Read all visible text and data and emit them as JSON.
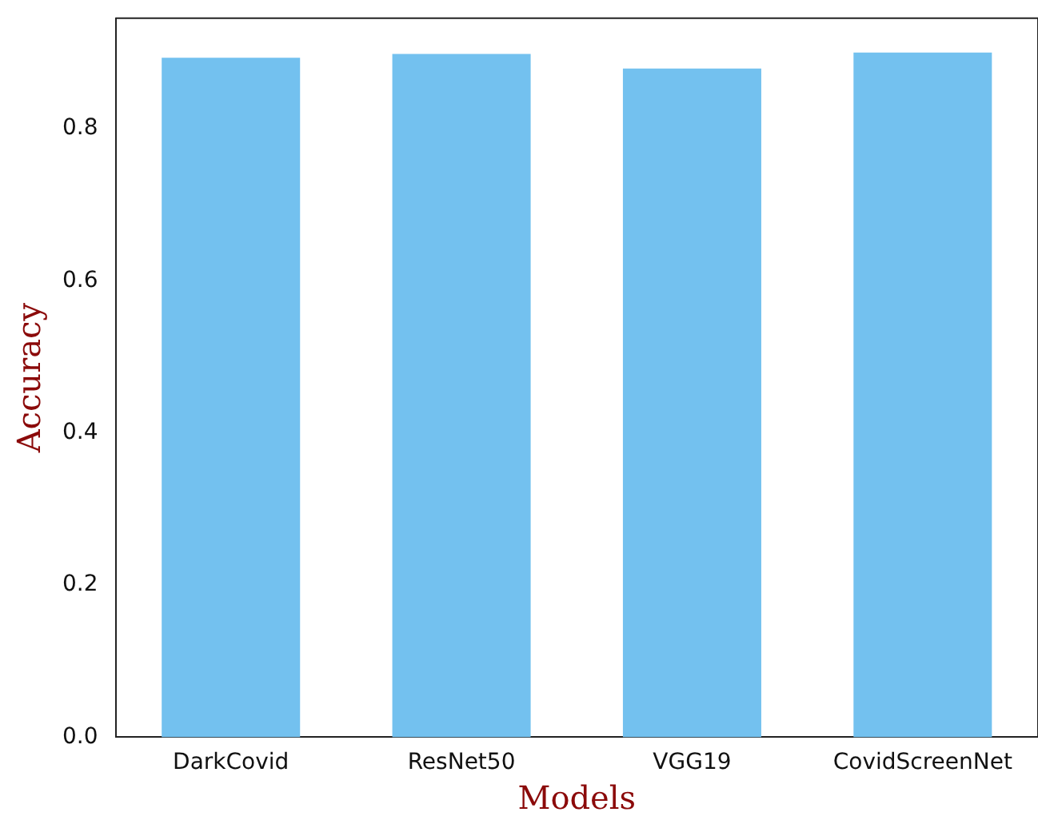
{
  "chart_data": {
    "type": "bar",
    "xlabel": "Models",
    "ylabel": "Accuracy",
    "categories": [
      "DarkCovid",
      "ResNet50",
      "VGG19",
      "CovidScreenNet"
    ],
    "values": [
      0.893,
      0.898,
      0.879,
      0.9
    ],
    "color": "#73c1ef",
    "ylim": [
      0,
      0.945
    ],
    "yticks": [
      {
        "value": 0,
        "label": "0.0"
      },
      {
        "value": 0.2,
        "label": "0.2"
      },
      {
        "value": 0.4,
        "label": "0.4"
      },
      {
        "value": 0.6,
        "label": "0.6"
      },
      {
        "value": 0.8,
        "label": "0.8"
      }
    ],
    "grid": false,
    "legend": false
  }
}
